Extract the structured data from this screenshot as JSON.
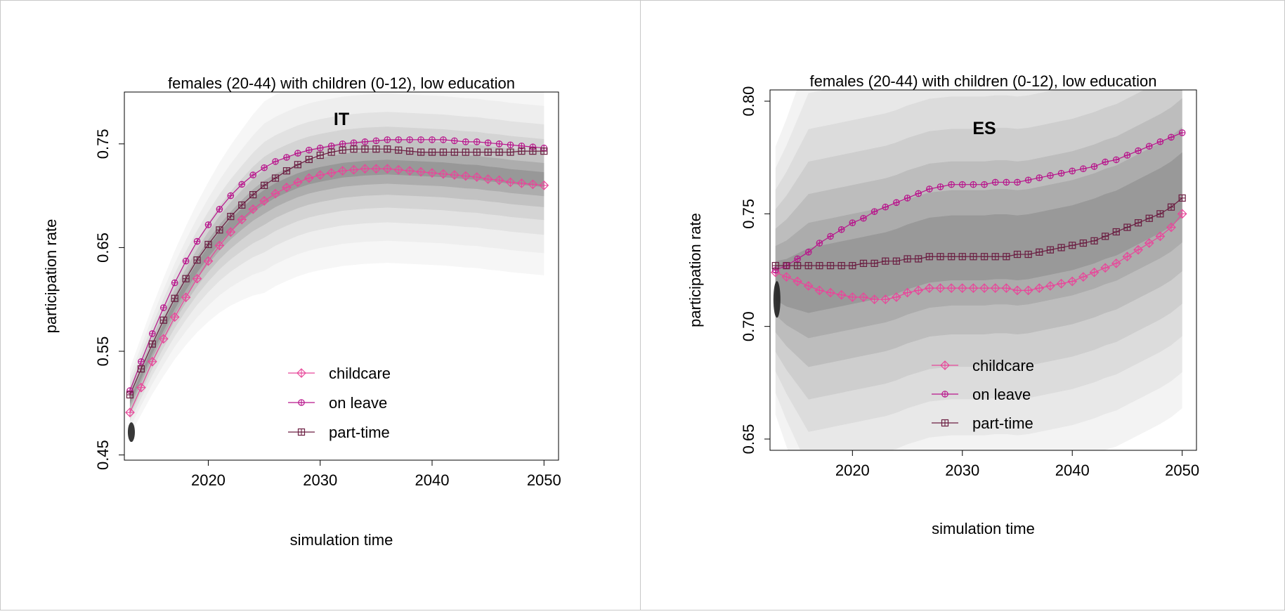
{
  "chart_data": [
    {
      "type": "line",
      "title": "females (20-44) with children (0-12), low education",
      "annotation": "IT",
      "xlabel": "simulation time",
      "ylabel": "participation rate",
      "xlim": [
        2012.5,
        2051.3
      ],
      "ylim": [
        0.445,
        0.8
      ],
      "xticks": [
        2020,
        2030,
        2040,
        2050
      ],
      "xtick_labels": [
        "2020",
        "2030",
        "2040",
        "2050"
      ],
      "yticks": [
        0.45,
        0.55,
        0.65,
        0.75
      ],
      "ytick_labels": [
        "0.45",
        "0.55",
        "0.65",
        "0.75"
      ],
      "legend_position": "bottom-center",
      "background": "grey density shading of simulation runs",
      "x": [
        2013,
        2014,
        2015,
        2016,
        2017,
        2018,
        2019,
        2020,
        2021,
        2022,
        2023,
        2024,
        2025,
        2026,
        2027,
        2028,
        2029,
        2030,
        2031,
        2032,
        2033,
        2034,
        2035,
        2036,
        2037,
        2038,
        2039,
        2040,
        2041,
        2042,
        2043,
        2044,
        2045,
        2046,
        2047,
        2048,
        2049,
        2050
      ],
      "series": [
        {
          "name": "childcare",
          "color": "#e8479a",
          "marker": "diamond-plus",
          "values": [
            0.491,
            0.515,
            0.54,
            0.562,
            0.583,
            0.602,
            0.62,
            0.637,
            0.652,
            0.665,
            0.677,
            0.687,
            0.695,
            0.702,
            0.708,
            0.713,
            0.717,
            0.72,
            0.722,
            0.724,
            0.725,
            0.726,
            0.726,
            0.726,
            0.725,
            0.724,
            0.723,
            0.722,
            0.721,
            0.72,
            0.719,
            0.718,
            0.716,
            0.715,
            0.713,
            0.712,
            0.711,
            0.71
          ]
        },
        {
          "name": "on leave",
          "color": "#b8168c",
          "marker": "circle-plus",
          "values": [
            0.512,
            0.54,
            0.567,
            0.592,
            0.616,
            0.637,
            0.656,
            0.672,
            0.687,
            0.7,
            0.711,
            0.72,
            0.727,
            0.733,
            0.737,
            0.741,
            0.744,
            0.746,
            0.748,
            0.75,
            0.751,
            0.752,
            0.753,
            0.754,
            0.754,
            0.754,
            0.754,
            0.754,
            0.754,
            0.753,
            0.752,
            0.752,
            0.751,
            0.75,
            0.749,
            0.748,
            0.747,
            0.746
          ]
        },
        {
          "name": "part-time",
          "color": "#6b1e42",
          "marker": "square-plus",
          "values": [
            0.508,
            0.533,
            0.557,
            0.58,
            0.601,
            0.62,
            0.638,
            0.653,
            0.667,
            0.68,
            0.691,
            0.701,
            0.71,
            0.717,
            0.724,
            0.73,
            0.735,
            0.739,
            0.742,
            0.744,
            0.745,
            0.745,
            0.745,
            0.745,
            0.744,
            0.743,
            0.742,
            0.742,
            0.742,
            0.742,
            0.742,
            0.742,
            0.742,
            0.742,
            0.742,
            0.743,
            0.743,
            0.743
          ]
        }
      ]
    },
    {
      "type": "line",
      "title": "females (20-44) with children (0-12), low education",
      "annotation": "ES",
      "xlabel": "simulation time",
      "ylabel": "participation rate",
      "xlim": [
        2012.5,
        2051.3
      ],
      "ylim": [
        0.645,
        0.805
      ],
      "xticks": [
        2020,
        2030,
        2040,
        2050
      ],
      "xtick_labels": [
        "2020",
        "2030",
        "2040",
        "2050"
      ],
      "yticks": [
        0.65,
        0.7,
        0.75,
        0.8
      ],
      "ytick_labels": [
        "0.65",
        "0.70",
        "0.75",
        "0.80"
      ],
      "legend_position": "bottom-center",
      "background": "grey density shading of simulation runs",
      "x": [
        2013,
        2014,
        2015,
        2016,
        2017,
        2018,
        2019,
        2020,
        2021,
        2022,
        2023,
        2024,
        2025,
        2026,
        2027,
        2028,
        2029,
        2030,
        2031,
        2032,
        2033,
        2034,
        2035,
        2036,
        2037,
        2038,
        2039,
        2040,
        2041,
        2042,
        2043,
        2044,
        2045,
        2046,
        2047,
        2048,
        2049,
        2050
      ],
      "series": [
        {
          "name": "childcare",
          "color": "#e8479a",
          "marker": "diamond-plus",
          "values": [
            0.724,
            0.722,
            0.72,
            0.718,
            0.716,
            0.715,
            0.714,
            0.713,
            0.713,
            0.712,
            0.712,
            0.713,
            0.715,
            0.716,
            0.717,
            0.717,
            0.717,
            0.717,
            0.717,
            0.717,
            0.717,
            0.717,
            0.716,
            0.716,
            0.717,
            0.718,
            0.719,
            0.72,
            0.722,
            0.724,
            0.726,
            0.728,
            0.731,
            0.734,
            0.737,
            0.74,
            0.744,
            0.75
          ]
        },
        {
          "name": "on leave",
          "color": "#b8168c",
          "marker": "circle-plus",
          "values": [
            0.725,
            0.727,
            0.73,
            0.733,
            0.737,
            0.74,
            0.743,
            0.746,
            0.748,
            0.751,
            0.753,
            0.755,
            0.757,
            0.759,
            0.761,
            0.762,
            0.763,
            0.763,
            0.763,
            0.763,
            0.764,
            0.764,
            0.764,
            0.765,
            0.766,
            0.767,
            0.768,
            0.769,
            0.77,
            0.771,
            0.773,
            0.774,
            0.776,
            0.778,
            0.78,
            0.782,
            0.784,
            0.786
          ]
        },
        {
          "name": "part-time",
          "color": "#6b1e42",
          "marker": "square-plus",
          "values": [
            0.727,
            0.727,
            0.727,
            0.727,
            0.727,
            0.727,
            0.727,
            0.727,
            0.728,
            0.728,
            0.729,
            0.729,
            0.73,
            0.73,
            0.731,
            0.731,
            0.731,
            0.731,
            0.731,
            0.731,
            0.731,
            0.731,
            0.732,
            0.732,
            0.733,
            0.734,
            0.735,
            0.736,
            0.737,
            0.738,
            0.74,
            0.742,
            0.744,
            0.746,
            0.748,
            0.75,
            0.753,
            0.757
          ]
        }
      ]
    }
  ]
}
